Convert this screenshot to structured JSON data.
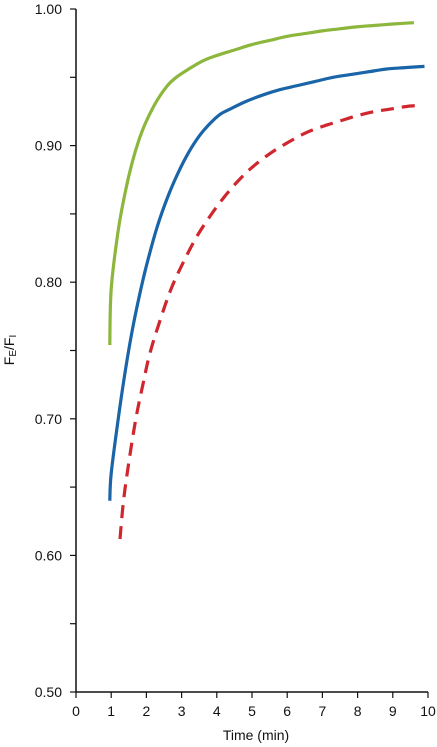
{
  "chart_data": {
    "type": "line",
    "title": "",
    "xlabel": "Time (min)",
    "ylabel_main": "F",
    "ylabel_sub_1": "E",
    "ylabel_mid": "/F",
    "ylabel_sub_2": "I",
    "xlim": [
      0,
      10
    ],
    "ylim": [
      0.5,
      1.0
    ],
    "x_ticks": [
      {
        "value": 0,
        "label": "0"
      },
      {
        "value": 1,
        "label": "1"
      },
      {
        "value": 2,
        "label": "2"
      },
      {
        "value": 3,
        "label": "3"
      },
      {
        "value": 4,
        "label": "4"
      },
      {
        "value": 5,
        "label": "5"
      },
      {
        "value": 6,
        "label": "6"
      },
      {
        "value": 7,
        "label": "7"
      },
      {
        "value": 8,
        "label": "8"
      },
      {
        "value": 9,
        "label": "9"
      },
      {
        "value": 10,
        "label": "10"
      }
    ],
    "y_ticks": [
      {
        "value": 0.5,
        "label": "0.50"
      },
      {
        "value": 0.55,
        "label": ""
      },
      {
        "value": 0.6,
        "label": "0.60"
      },
      {
        "value": 0.65,
        "label": ""
      },
      {
        "value": 0.7,
        "label": "0.70"
      },
      {
        "value": 0.75,
        "label": ""
      },
      {
        "value": 0.8,
        "label": "0.80"
      },
      {
        "value": 0.85,
        "label": ""
      },
      {
        "value": 0.9,
        "label": "0.90"
      },
      {
        "value": 0.95,
        "label": ""
      },
      {
        "value": 1.0,
        "label": "1.00"
      }
    ],
    "grid": false,
    "legend": "none",
    "series": [
      {
        "color": "#8cb63c",
        "dash": false,
        "points": [
          [
            0.96,
            0.754
          ],
          [
            1.0,
            0.795
          ],
          [
            1.2,
            0.838
          ],
          [
            1.4,
            0.866
          ],
          [
            1.6,
            0.888
          ],
          [
            1.8,
            0.905
          ],
          [
            2.0,
            0.918
          ],
          [
            2.3,
            0.933
          ],
          [
            2.6,
            0.944
          ],
          [
            2.85,
            0.95
          ],
          [
            3.2,
            0.956
          ],
          [
            3.6,
            0.962
          ],
          [
            4.0,
            0.966
          ],
          [
            4.5,
            0.97
          ],
          [
            5.0,
            0.974
          ],
          [
            5.5,
            0.977
          ],
          [
            6.0,
            0.98
          ],
          [
            6.5,
            0.982
          ],
          [
            7.0,
            0.984
          ],
          [
            7.5,
            0.9855
          ],
          [
            8.0,
            0.987
          ],
          [
            8.5,
            0.988
          ],
          [
            9.0,
            0.989
          ],
          [
            9.6,
            0.99
          ]
        ]
      },
      {
        "color": "#1a64a8",
        "dash": false,
        "points": [
          [
            0.96,
            0.64
          ],
          [
            1.0,
            0.66
          ],
          [
            1.2,
            0.7
          ],
          [
            1.4,
            0.735
          ],
          [
            1.6,
            0.765
          ],
          [
            1.8,
            0.79
          ],
          [
            2.0,
            0.812
          ],
          [
            2.3,
            0.84
          ],
          [
            2.6,
            0.862
          ],
          [
            2.9,
            0.88
          ],
          [
            3.2,
            0.895
          ],
          [
            3.5,
            0.907
          ],
          [
            3.8,
            0.916
          ],
          [
            4.1,
            0.923
          ],
          [
            4.4,
            0.927
          ],
          [
            4.8,
            0.932
          ],
          [
            5.3,
            0.937
          ],
          [
            5.8,
            0.941
          ],
          [
            6.3,
            0.944
          ],
          [
            6.8,
            0.947
          ],
          [
            7.3,
            0.95
          ],
          [
            7.8,
            0.952
          ],
          [
            8.3,
            0.954
          ],
          [
            8.8,
            0.956
          ],
          [
            9.3,
            0.957
          ],
          [
            9.9,
            0.958
          ]
        ]
      },
      {
        "color": "#d0262e",
        "dash": true,
        "points": [
          [
            1.25,
            0.612
          ],
          [
            1.35,
            0.64
          ],
          [
            1.5,
            0.668
          ],
          [
            1.7,
            0.7
          ],
          [
            1.9,
            0.725
          ],
          [
            2.1,
            0.748
          ],
          [
            2.4,
            0.773
          ],
          [
            2.7,
            0.795
          ],
          [
            3.0,
            0.812
          ],
          [
            3.4,
            0.832
          ],
          [
            3.8,
            0.848
          ],
          [
            4.2,
            0.862
          ],
          [
            4.6,
            0.874
          ],
          [
            5.0,
            0.884
          ],
          [
            5.5,
            0.894
          ],
          [
            6.0,
            0.902
          ],
          [
            6.5,
            0.909
          ],
          [
            7.0,
            0.914
          ],
          [
            7.5,
            0.918
          ],
          [
            8.0,
            0.922
          ],
          [
            8.5,
            0.925
          ],
          [
            9.0,
            0.927
          ],
          [
            9.5,
            0.929
          ],
          [
            9.8,
            0.929
          ]
        ]
      }
    ]
  }
}
